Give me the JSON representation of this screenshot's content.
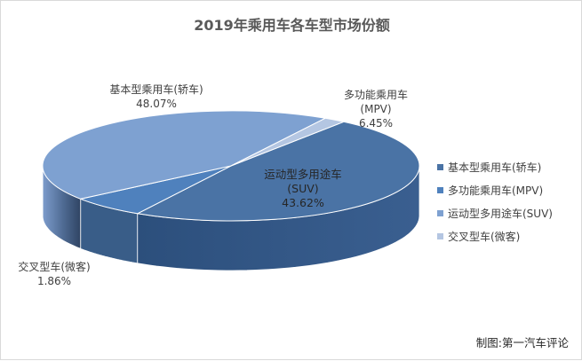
{
  "chart_data": {
    "type": "pie",
    "title": "2019年乘用车各车型市场份额",
    "slices": [
      {
        "name": "基本型乘用车(轿车)",
        "label_line1": "基本型乘用车(轿车)",
        "label_line2": "",
        "value_label": "48.07%",
        "value": 48.07,
        "color": "#4a73a5"
      },
      {
        "name": "多功能乘用车(MPV)",
        "label_line1": "多功能乘用车",
        "label_line2": "(MPV)",
        "value_label": "6.45%",
        "value": 6.45,
        "color": "#4f81bd"
      },
      {
        "name": "运动型多用途车(SUV)",
        "label_line1": "运动型多用途车",
        "label_line2": "(SUV)",
        "value_label": "43.62%",
        "value": 43.62,
        "color": "#7ea1d1"
      },
      {
        "name": "交叉型车(微客)",
        "label_line1": "交叉型车(微客)",
        "label_line2": "",
        "value_label": "1.86%",
        "value": 1.86,
        "color": "#b4c6e2"
      }
    ],
    "legend_position": "right"
  },
  "source": "制图:第一汽车评论"
}
